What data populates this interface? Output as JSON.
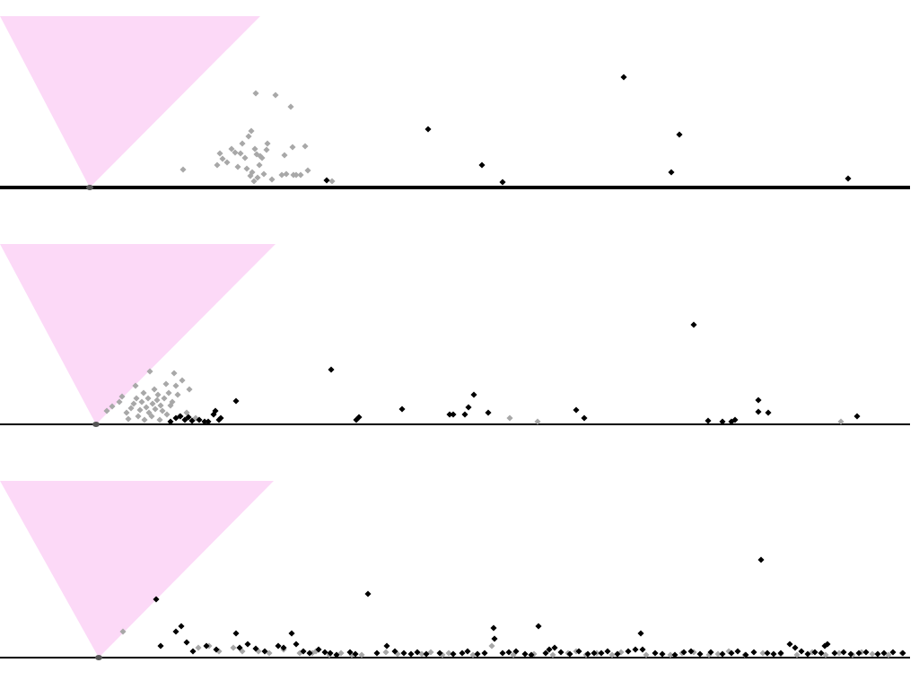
{
  "colors": {
    "cone": "#fcd9f7",
    "axis": "#000000",
    "vertex": "#555555",
    "point_black": "#000000",
    "point_gray": "#a8a8a8"
  },
  "chart_data": [
    {
      "type": "scatter",
      "panel": "top",
      "grid": false,
      "legend": "none",
      "xlim": [
        0,
        1014
      ],
      "ylim": [
        0,
        200
      ],
      "cone_vertex": [
        100,
        0
      ],
      "cone_top_x": [
        0,
        290
      ],
      "vertex_point": [
        100,
        0
      ],
      "series": [
        {
          "color": "point_gray",
          "points": [
            [
              204,
              19
            ],
            [
              242,
              24
            ],
            [
              245,
              37
            ],
            [
              248,
              31
            ],
            [
              253,
              27
            ],
            [
              258,
              42
            ],
            [
              262,
              38
            ],
            [
              265,
              22
            ],
            [
              268,
              37
            ],
            [
              270,
              48
            ],
            [
              273,
              32
            ],
            [
              275,
              20
            ],
            [
              277,
              56
            ],
            [
              279,
              12
            ],
            [
              280,
              62
            ],
            [
              281,
              16
            ],
            [
              283,
              6
            ],
            [
              284,
              42
            ],
            [
              285,
              104
            ],
            [
              286,
              36
            ],
            [
              287,
              10
            ],
            [
              289,
              24
            ],
            [
              290,
              34
            ],
            [
              292,
              32
            ],
            [
              294,
              14
            ],
            [
              297,
              41
            ],
            [
              298,
              48
            ],
            [
              303,
              8
            ],
            [
              307,
              102
            ],
            [
              314,
              13
            ],
            [
              317,
              35
            ],
            [
              319,
              14
            ],
            [
              324,
              89
            ],
            [
              326,
              44
            ],
            [
              327,
              13
            ],
            [
              330,
              13
            ],
            [
              335,
              13
            ],
            [
              340,
              45
            ],
            [
              343,
              18
            ],
            [
              370,
              6
            ]
          ]
        },
        {
          "color": "point_black",
          "points": [
            [
              364,
              7
            ],
            [
              477,
              64
            ],
            [
              537,
              24
            ],
            [
              560,
              5
            ],
            [
              695,
              122
            ],
            [
              748,
              16
            ],
            [
              757,
              58
            ],
            [
              945,
              9
            ]
          ]
        }
      ]
    },
    {
      "type": "scatter",
      "panel": "middle",
      "grid": false,
      "legend": "none",
      "xlim": [
        0,
        1014
      ],
      "ylim": [
        0,
        200
      ],
      "cone_vertex": [
        107,
        0
      ],
      "cone_top_x": [
        0,
        307
      ],
      "vertex_point": [
        107,
        0
      ],
      "series": [
        {
          "color": "point_gray",
          "points": [
            [
              119,
              14
            ],
            [
              125,
              19
            ],
            [
              133,
              24
            ],
            [
              136,
              30
            ],
            [
              141,
              12
            ],
            [
              143,
              5
            ],
            [
              146,
              17
            ],
            [
              149,
              22
            ],
            [
              151,
              42
            ],
            [
              152,
              28
            ],
            [
              154,
              8
            ],
            [
              156,
              15
            ],
            [
              158,
              24
            ],
            [
              160,
              34
            ],
            [
              161,
              4
            ],
            [
              163,
              18
            ],
            [
              165,
              28
            ],
            [
              166,
              12
            ],
            [
              167,
              58
            ],
            [
              169,
              8
            ],
            [
              170,
              22
            ],
            [
              172,
              38
            ],
            [
              173,
              16
            ],
            [
              175,
              26
            ],
            [
              176,
              32
            ],
            [
              178,
              4
            ],
            [
              179,
              20
            ],
            [
              181,
              14
            ],
            [
              183,
              28
            ],
            [
              185,
              44
            ],
            [
              186,
              10
            ],
            [
              188,
              34
            ],
            [
              190,
              20
            ],
            [
              192,
              24
            ],
            [
              194,
              56
            ],
            [
              196,
              42
            ],
            [
              198,
              32
            ],
            [
              200,
              8
            ],
            [
              203,
              48
            ],
            [
              208,
              12
            ],
            [
              211,
              38
            ],
            [
              218,
              6
            ],
            [
              568,
              6
            ],
            [
              599,
              2
            ],
            [
              937,
              2
            ]
          ]
        },
        {
          "color": "point_black",
          "points": [
            [
              190,
              2
            ],
            [
              196,
              6
            ],
            [
              201,
              8
            ],
            [
              206,
              4
            ],
            [
              210,
              7
            ],
            [
              214,
              3
            ],
            [
              222,
              4
            ],
            [
              228,
              2
            ],
            [
              232,
              2
            ],
            [
              238,
              10
            ],
            [
              240,
              14
            ],
            [
              244,
              4
            ],
            [
              246,
              6
            ],
            [
              263,
              25
            ],
            [
              369,
              60
            ],
            [
              397,
              4
            ],
            [
              400,
              7
            ],
            [
              448,
              16
            ],
            [
              501,
              10
            ],
            [
              505,
              10
            ],
            [
              518,
              10
            ],
            [
              522,
              18
            ],
            [
              528,
              32
            ],
            [
              544,
              12
            ],
            [
              642,
              15
            ],
            [
              651,
              6
            ],
            [
              773,
              110
            ],
            [
              789,
              3
            ],
            [
              805,
              2
            ],
            [
              815,
              2
            ],
            [
              819,
              4
            ],
            [
              845,
              26
            ],
            [
              845,
              13
            ],
            [
              856,
              12
            ],
            [
              955,
              8
            ]
          ]
        }
      ]
    },
    {
      "type": "scatter",
      "panel": "bottom",
      "grid": false,
      "legend": "none",
      "xlim": [
        0,
        1014
      ],
      "ylim": [
        0,
        200
      ],
      "cone_vertex": [
        110,
        0
      ],
      "cone_top_x": [
        0,
        305
      ],
      "vertex_point": [
        110,
        0
      ],
      "series": [
        {
          "color": "point_gray",
          "points": [
            [
              137,
              28
            ],
            [
              221,
              10
            ],
            [
              233,
              12
            ],
            [
              244,
              6
            ],
            [
              260,
              10
            ],
            [
              270,
              6
            ],
            [
              288,
              6
            ],
            [
              300,
              4
            ],
            [
              316,
              8
            ],
            [
              334,
              4
            ],
            [
              348,
              4
            ],
            [
              352,
              6
            ],
            [
              367,
              2
            ],
            [
              380,
              4
            ],
            [
              392,
              2
            ],
            [
              403,
              2
            ],
            [
              430,
              5
            ],
            [
              443,
              3
            ],
            [
              470,
              3
            ],
            [
              480,
              5
            ],
            [
              493,
              2
            ],
            [
              500,
              4
            ],
            [
              527,
              2
            ],
            [
              548,
              12
            ],
            [
              572,
              2
            ],
            [
              595,
              3
            ],
            [
              616,
              2
            ],
            [
              633,
              4
            ],
            [
              642,
              6
            ],
            [
              653,
              2
            ],
            [
              665,
              4
            ],
            [
              682,
              2
            ],
            [
              692,
              5
            ],
            [
              720,
              2
            ],
            [
              747,
              2
            ],
            [
              760,
              4
            ],
            [
              773,
              5
            ],
            [
              790,
              2
            ],
            [
              800,
              3
            ],
            [
              812,
              6
            ],
            [
              830,
              2
            ],
            [
              850,
              4
            ],
            [
              870,
              3
            ],
            [
              888,
              2
            ],
            [
              905,
              5
            ],
            [
              920,
              2
            ],
            [
              935,
              4
            ],
            [
              950,
              2
            ],
            [
              960,
              5
            ],
            [
              972,
              3
            ],
            [
              990,
              2
            ],
            [
              1005,
              4
            ]
          ]
        },
        {
          "color": "point_black",
          "points": [
            [
              174,
              64
            ],
            [
              179,
              12
            ],
            [
              196,
              28
            ],
            [
              202,
              34
            ],
            [
              208,
              16
            ],
            [
              215,
              6
            ],
            [
              230,
              12
            ],
            [
              241,
              8
            ],
            [
              263,
              26
            ],
            [
              267,
              10
            ],
            [
              276,
              14
            ],
            [
              285,
              9
            ],
            [
              295,
              6
            ],
            [
              310,
              12
            ],
            [
              316,
              10
            ],
            [
              325,
              26
            ],
            [
              330,
              14
            ],
            [
              338,
              6
            ],
            [
              345,
              4
            ],
            [
              355,
              8
            ],
            [
              362,
              5
            ],
            [
              368,
              4
            ],
            [
              375,
              2
            ],
            [
              390,
              5
            ],
            [
              396,
              3
            ],
            [
              410,
              70
            ],
            [
              420,
              4
            ],
            [
              431,
              12
            ],
            [
              440,
              6
            ],
            [
              450,
              4
            ],
            [
              458,
              3
            ],
            [
              465,
              5
            ],
            [
              475,
              3
            ],
            [
              490,
              4
            ],
            [
              505,
              3
            ],
            [
              515,
              4
            ],
            [
              521,
              6
            ],
            [
              532,
              3
            ],
            [
              540,
              4
            ],
            [
              550,
              32
            ],
            [
              551,
              20
            ],
            [
              560,
              4
            ],
            [
              567,
              5
            ],
            [
              575,
              6
            ],
            [
              585,
              3
            ],
            [
              592,
              2
            ],
            [
              600,
              34
            ],
            [
              608,
              4
            ],
            [
              612,
              8
            ],
            [
              618,
              10
            ],
            [
              625,
              5
            ],
            [
              635,
              3
            ],
            [
              645,
              6
            ],
            [
              655,
              3
            ],
            [
              662,
              4
            ],
            [
              670,
              4
            ],
            [
              677,
              6
            ],
            [
              688,
              3
            ],
            [
              700,
              6
            ],
            [
              708,
              8
            ],
            [
              714,
              26
            ],
            [
              716,
              8
            ],
            [
              730,
              4
            ],
            [
              738,
              3
            ],
            [
              752,
              2
            ],
            [
              762,
              5
            ],
            [
              770,
              6
            ],
            [
              780,
              3
            ],
            [
              792,
              5
            ],
            [
              805,
              3
            ],
            [
              815,
              4
            ],
            [
              822,
              6
            ],
            [
              831,
              2
            ],
            [
              840,
              5
            ],
            [
              848,
              108
            ],
            [
              855,
              4
            ],
            [
              862,
              3
            ],
            [
              870,
              4
            ],
            [
              880,
              14
            ],
            [
              886,
              10
            ],
            [
              893,
              6
            ],
            [
              900,
              3
            ],
            [
              908,
              5
            ],
            [
              915,
              4
            ],
            [
              919,
              12
            ],
            [
              922,
              14
            ],
            [
              930,
              4
            ],
            [
              940,
              5
            ],
            [
              948,
              3
            ],
            [
              957,
              4
            ],
            [
              965,
              5
            ],
            [
              978,
              3
            ],
            [
              985,
              4
            ],
            [
              995,
              5
            ],
            [
              1006,
              4
            ]
          ]
        }
      ]
    }
  ]
}
